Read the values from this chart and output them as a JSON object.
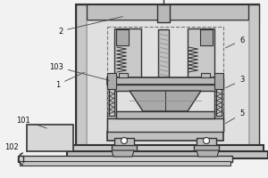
{
  "bg_color": "#f0f0f0",
  "frame_bg": "#e8e8e8",
  "panel_bg": "#d8d8d8",
  "dark": "#555555",
  "darker": "#333333",
  "mid": "#999999",
  "light": "#bbbbbb",
  "white": "#ffffff",
  "dashed": "#777777",
  "figsize": [
    3.0,
    2.0
  ],
  "dpi": 100
}
